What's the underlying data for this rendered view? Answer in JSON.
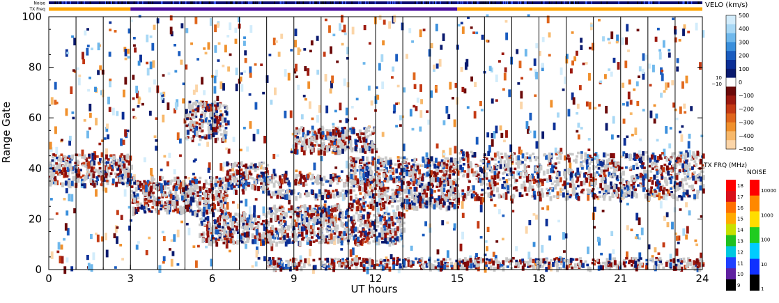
{
  "chart_data": {
    "type": "heatmap",
    "title": "",
    "xlabel": "UT hours",
    "ylabel": "Range Gate",
    "xlim": [
      0,
      24
    ],
    "ylim": [
      0,
      100
    ],
    "x_ticks": [
      "0",
      "3",
      "6",
      "9",
      "12",
      "15",
      "18",
      "21",
      "24"
    ],
    "y_ticks": [
      "0",
      "20",
      "40",
      "60",
      "80",
      "100"
    ],
    "grid": "vertical lines every hour",
    "top_bars": {
      "noise_label": "Noise",
      "txfreq_label": "TX Freq",
      "txfreq_segments": [
        {
          "start": 0,
          "end": 3,
          "color": "#ffa500"
        },
        {
          "start": 3,
          "end": 15,
          "color": "#4b0c9e"
        },
        {
          "start": 15,
          "end": 24,
          "color": "#ffa500"
        }
      ]
    },
    "velocity_scale": {
      "title": "VELO (km/s)",
      "tick_labels": [
        "500",
        "400",
        "300",
        "200",
        "100",
        "0",
        "−100",
        "−200",
        "−300",
        "−400",
        "−500"
      ],
      "side_labels": [
        "10",
        "−10"
      ],
      "colors": [
        "#d2ecfb",
        "#a8d8f5",
        "#6fb8ec",
        "#3a8fdc",
        "#1a5cbf",
        "#0c2f96",
        "#0a1a6e",
        "#ffffff",
        "#6b0a0a",
        "#9c1a10",
        "#c43a14",
        "#e0661c",
        "#f0902c",
        "#f7b86a",
        "#fbd5a8"
      ]
    },
    "txfreq_scale": {
      "title": "TX FRQ (MHz)",
      "tick_labels": [
        "18",
        "17",
        "16",
        "15",
        "14",
        "13",
        "12",
        "11",
        "10",
        "9"
      ],
      "colors": [
        "#ff0000",
        "#d8101a",
        "#ff7000",
        "#ffaa00",
        "#c8e000",
        "#20c020",
        "#00c8e0",
        "#2040ff",
        "#6020a0",
        "#000000"
      ]
    },
    "noise_scale": {
      "title": "NOISE",
      "tick_labels": [
        "10000",
        "1000",
        "100",
        "10",
        "1"
      ],
      "colors": [
        "#ff0000",
        "#ff8800",
        "#ffdd00",
        "#20cc20",
        "#00ccff",
        "#1030ff",
        "#000000"
      ]
    },
    "echo_bands": [
      {
        "name": "ground-scatter-main",
        "t0": 0.0,
        "t1": 3.0,
        "g0": 33,
        "g1": 45
      },
      {
        "name": "main-band-a",
        "t0": 3.0,
        "t1": 6.5,
        "g0": 22,
        "g1": 36
      },
      {
        "name": "rising-band",
        "t0": 6.5,
        "t1": 8.0,
        "g0": 30,
        "g1": 42
      },
      {
        "name": "band-b1",
        "t0": 8.0,
        "t1": 11.0,
        "g0": 33,
        "g1": 37
      },
      {
        "name": "band-b2",
        "t0": 8.0,
        "t1": 11.0,
        "g0": 28,
        "g1": 31
      },
      {
        "name": "band-b3",
        "t0": 8.0,
        "t1": 11.0,
        "g0": 22,
        "g1": 25
      },
      {
        "name": "descending-band",
        "t0": 11.0,
        "t1": 15.0,
        "g0": 24,
        "g1": 44
      },
      {
        "name": "lower-band",
        "t0": 5.5,
        "t1": 13.0,
        "g0": 10,
        "g1": 22
      },
      {
        "name": "bottom-band",
        "t0": 8.0,
        "t1": 24.0,
        "g0": 0,
        "g1": 4
      },
      {
        "name": "mid-cluster",
        "t0": 5.0,
        "t1": 6.5,
        "g0": 51,
        "g1": 66
      },
      {
        "name": "upper-scatter",
        "t0": 9.0,
        "t1": 12.0,
        "g0": 46,
        "g1": 56
      },
      {
        "name": "night-band",
        "t0": 15.0,
        "t1": 24.0,
        "g0": 28,
        "g1": 46
      }
    ]
  }
}
